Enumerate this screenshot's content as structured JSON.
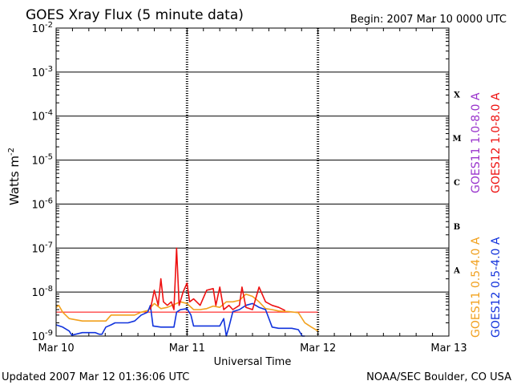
{
  "chart_data": {
    "type": "line",
    "title": "GOES Xray Flux (5 minute data)",
    "begin_label": "Begin:  2007 Mar 10 0000 UTC",
    "xlabel": "Universal Time",
    "ylabel": "Watts m",
    "ylabel_exponent": "-2",
    "y_scale": "log",
    "ylim": [
      1e-09,
      0.01
    ],
    "y_ticks": [
      {
        "base": "10",
        "exp": "-2",
        "value": 0.01
      },
      {
        "base": "10",
        "exp": "-3",
        "value": 0.001
      },
      {
        "base": "10",
        "exp": "-4",
        "value": 0.0001
      },
      {
        "base": "10",
        "exp": "-5",
        "value": 1e-05
      },
      {
        "base": "10",
        "exp": "-6",
        "value": 1e-06
      },
      {
        "base": "10",
        "exp": "-7",
        "value": 1e-07
      },
      {
        "base": "10",
        "exp": "-8",
        "value": 1e-08
      },
      {
        "base": "10",
        "exp": "-9",
        "value": 1e-09
      }
    ],
    "x_ticks": [
      {
        "label": "Mar 10",
        "day": 0
      },
      {
        "label": "Mar 11",
        "day": 1
      },
      {
        "label": "Mar 12",
        "day": 2
      },
      {
        "label": "Mar 13",
        "day": 3
      }
    ],
    "xlim_days": [
      0,
      3
    ],
    "grid": true,
    "flare_classes": [
      {
        "label": "X",
        "low": 0.0001
      },
      {
        "label": "M",
        "low": 1e-05
      },
      {
        "label": "C",
        "low": 1e-06
      },
      {
        "label": "B",
        "low": 1e-07
      },
      {
        "label": "A",
        "low": 1e-08
      }
    ],
    "reference_line": {
      "value": 3.5e-09,
      "color": "#ff0000"
    },
    "legend": [
      {
        "text": "GOES11 1.0-8.0 A",
        "color": "#9933cc"
      },
      {
        "text": "GOES12 1.0-8.0 A",
        "color": "#ee1111"
      },
      {
        "text": "GOES11 0.5-4.0 A",
        "color": "#f2a11c"
      },
      {
        "text": "GOES12 0.5-4.0 A",
        "color": "#1133dd"
      }
    ],
    "series": [
      {
        "name": "GOES11 0.5-4.0 A",
        "color": "#f2a11c",
        "points": [
          [
            0,
            4.5e-09
          ],
          [
            0.02,
            5e-09
          ],
          [
            0.05,
            3.5e-09
          ],
          [
            0.1,
            2.5e-09
          ],
          [
            0.2,
            2.2e-09
          ],
          [
            0.3,
            2.2e-09
          ],
          [
            0.38,
            2.2e-09
          ],
          [
            0.42,
            3e-09
          ],
          [
            0.5,
            3e-09
          ],
          [
            0.6,
            3e-09
          ],
          [
            0.65,
            3.5e-09
          ],
          [
            0.7,
            3.8e-09
          ],
          [
            0.75,
            5.5e-09
          ],
          [
            0.8,
            4.2e-09
          ],
          [
            0.85,
            4.5e-09
          ],
          [
            0.9,
            5.2e-09
          ],
          [
            0.95,
            6e-09
          ],
          [
            1.0,
            5.5e-09
          ],
          [
            1.05,
            4e-09
          ],
          [
            1.1,
            4e-09
          ],
          [
            1.15,
            4.2e-09
          ],
          [
            1.2,
            4.8e-09
          ],
          [
            1.25,
            4.5e-09
          ],
          [
            1.3,
            6e-09
          ],
          [
            1.35,
            6e-09
          ],
          [
            1.4,
            6.5e-09
          ],
          [
            1.45,
            9e-09
          ],
          [
            1.5,
            8e-09
          ],
          [
            1.55,
            6e-09
          ],
          [
            1.6,
            4.2e-09
          ],
          [
            1.65,
            4e-09
          ],
          [
            1.7,
            3.7e-09
          ],
          [
            1.78,
            3.6e-09
          ],
          [
            1.85,
            3.4e-09
          ],
          [
            1.9,
            2e-09
          ],
          [
            1.95,
            1.6e-09
          ],
          [
            2.0,
            1.3e-09
          ]
        ]
      },
      {
        "name": "GOES12 0.5-4.0 A",
        "color": "#1133dd",
        "points": [
          [
            0,
            1.8e-09
          ],
          [
            0.05,
            1.6e-09
          ],
          [
            0.1,
            1.3e-09
          ],
          [
            0.12,
            1.05e-09
          ],
          [
            0.15,
            1.1e-09
          ],
          [
            0.2,
            1.2e-09
          ],
          [
            0.25,
            1.2e-09
          ],
          [
            0.3,
            1.2e-09
          ],
          [
            0.33,
            1.1e-09
          ],
          [
            0.35,
            1.1e-09
          ],
          [
            0.38,
            1.6e-09
          ],
          [
            0.42,
            1.8e-09
          ],
          [
            0.45,
            2e-09
          ],
          [
            0.55,
            2e-09
          ],
          [
            0.6,
            2.2e-09
          ],
          [
            0.65,
            3e-09
          ],
          [
            0.7,
            3.5e-09
          ],
          [
            0.72,
            5e-09
          ],
          [
            0.74,
            1.7e-09
          ],
          [
            0.8,
            1.6e-09
          ],
          [
            0.9,
            1.6e-09
          ],
          [
            0.92,
            3.5e-09
          ],
          [
            0.95,
            4e-09
          ],
          [
            1.0,
            4.2e-09
          ],
          [
            1.03,
            3e-09
          ],
          [
            1.05,
            1.7e-09
          ],
          [
            1.1,
            1.7e-09
          ],
          [
            1.2,
            1.7e-09
          ],
          [
            1.25,
            1.7e-09
          ],
          [
            1.28,
            2.5e-09
          ],
          [
            1.3,
            1e-09
          ],
          [
            1.32,
            1.6e-09
          ],
          [
            1.35,
            3.6e-09
          ],
          [
            1.4,
            4e-09
          ],
          [
            1.45,
            5e-09
          ],
          [
            1.5,
            5.5e-09
          ],
          [
            1.55,
            4.5e-09
          ],
          [
            1.6,
            4e-09
          ],
          [
            1.65,
            1.6e-09
          ],
          [
            1.7,
            1.5e-09
          ],
          [
            1.8,
            1.5e-09
          ],
          [
            1.85,
            1.4e-09
          ],
          [
            1.88,
            1e-09
          ],
          [
            1.9,
            1e-09
          ]
        ]
      },
      {
        "name": "GOES12 1.0-8.0 A",
        "color": "#ee1111",
        "points": [
          [
            0.72,
            4e-09
          ],
          [
            0.75,
            1.1e-08
          ],
          [
            0.78,
            5e-09
          ],
          [
            0.8,
            2e-08
          ],
          [
            0.82,
            6e-09
          ],
          [
            0.85,
            5e-09
          ],
          [
            0.88,
            6e-09
          ],
          [
            0.9,
            4e-09
          ],
          [
            0.92,
            1e-07
          ],
          [
            0.94,
            5e-09
          ],
          [
            0.97,
            1e-08
          ],
          [
            1.0,
            1.6e-08
          ],
          [
            1.02,
            6e-09
          ],
          [
            1.05,
            7e-09
          ],
          [
            1.1,
            5e-09
          ],
          [
            1.15,
            1.1e-08
          ],
          [
            1.2,
            1.2e-08
          ],
          [
            1.22,
            5e-09
          ],
          [
            1.25,
            1.3e-08
          ],
          [
            1.28,
            4e-09
          ],
          [
            1.32,
            5e-09
          ],
          [
            1.35,
            4e-09
          ],
          [
            1.4,
            5e-09
          ],
          [
            1.42,
            1.3e-08
          ],
          [
            1.45,
            4.5e-09
          ],
          [
            1.5,
            4e-09
          ],
          [
            1.55,
            1.3e-08
          ],
          [
            1.6,
            6e-09
          ],
          [
            1.65,
            5e-09
          ],
          [
            1.7,
            4.5e-09
          ],
          [
            1.75,
            3.8e-09
          ]
        ]
      }
    ]
  },
  "footer": {
    "updated": "Updated 2007 Mar 12 01:36:06 UTC",
    "credit": "NOAA/SEC Boulder, CO USA"
  }
}
